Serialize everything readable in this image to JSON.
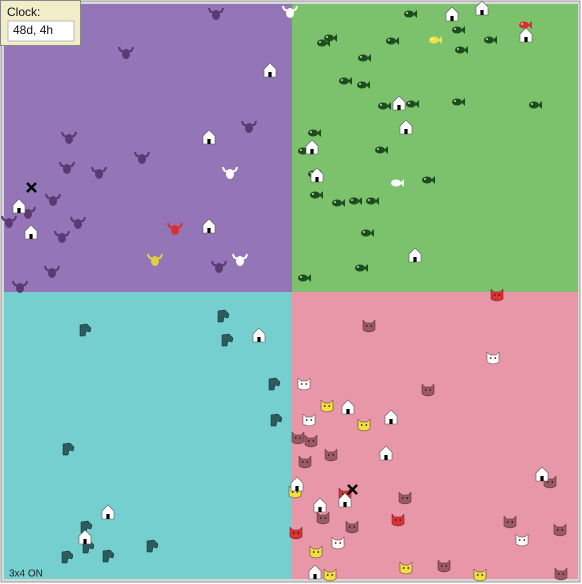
{
  "clock": {
    "label": "Clock:",
    "value": "48d, 4h"
  },
  "status": "3x4 ON"
}
